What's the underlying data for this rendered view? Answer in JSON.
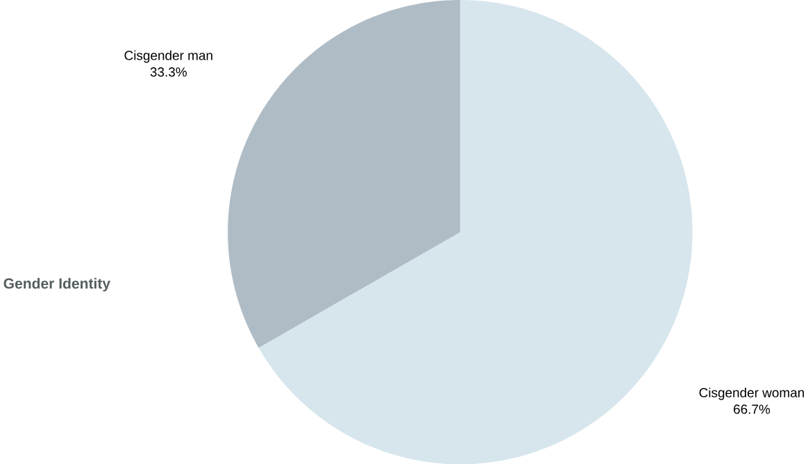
{
  "chart_data": {
    "type": "pie",
    "title": "Gender Identity",
    "categories": [
      "Cisgender woman",
      "Cisgender man"
    ],
    "values": [
      66.7,
      33.3
    ],
    "colors": [
      "#d6e6ec",
      "#afbcc5"
    ],
    "value_labels": [
      "66.7%",
      "33.3%"
    ]
  }
}
